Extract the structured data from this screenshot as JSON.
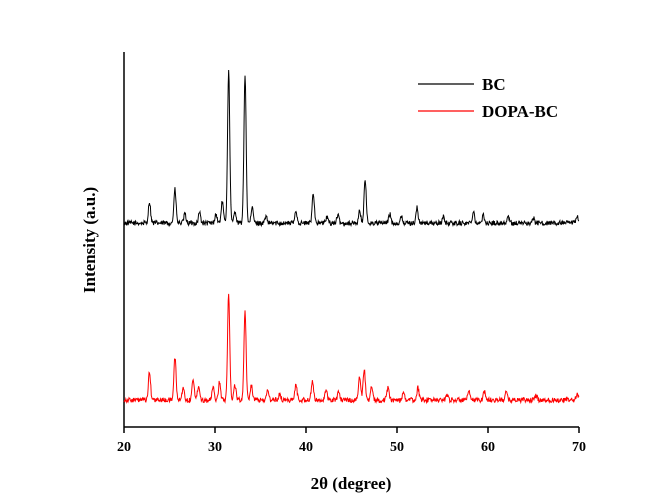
{
  "chart_data": {
    "type": "line",
    "title": "",
    "xlabel": "2θ (degree)",
    "ylabel": "Intensity (a.u.)",
    "xlim": [
      20,
      70
    ],
    "x_ticks": [
      "20",
      "30",
      "40",
      "50",
      "60",
      "70"
    ],
    "y_ticks_visible": false,
    "grid": false,
    "legend_position": "top-right",
    "series": [
      {
        "name": "BC",
        "color": "#000000",
        "baseline": 0.58,
        "noise": 0.008,
        "peaks": [
          {
            "x": 22.8,
            "h": 0.07
          },
          {
            "x": 25.6,
            "h": 0.11
          },
          {
            "x": 26.7,
            "h": 0.03
          },
          {
            "x": 28.3,
            "h": 0.035
          },
          {
            "x": 30.1,
            "h": 0.03
          },
          {
            "x": 30.8,
            "h": 0.07
          },
          {
            "x": 31.5,
            "h": 0.5
          },
          {
            "x": 32.2,
            "h": 0.04
          },
          {
            "x": 33.3,
            "h": 0.49
          },
          {
            "x": 34.1,
            "h": 0.05
          },
          {
            "x": 35.6,
            "h": 0.02
          },
          {
            "x": 38.9,
            "h": 0.04
          },
          {
            "x": 40.8,
            "h": 0.1
          },
          {
            "x": 42.3,
            "h": 0.02
          },
          {
            "x": 43.5,
            "h": 0.025
          },
          {
            "x": 45.9,
            "h": 0.04
          },
          {
            "x": 46.5,
            "h": 0.14
          },
          {
            "x": 49.2,
            "h": 0.03
          },
          {
            "x": 50.5,
            "h": 0.02
          },
          {
            "x": 52.2,
            "h": 0.05
          },
          {
            "x": 55.1,
            "h": 0.02
          },
          {
            "x": 58.4,
            "h": 0.04
          },
          {
            "x": 59.5,
            "h": 0.025
          },
          {
            "x": 62.2,
            "h": 0.02
          },
          {
            "x": 65.0,
            "h": 0.015
          },
          {
            "x": 69.8,
            "h": 0.02
          }
        ]
      },
      {
        "name": "DOPA-BC",
        "color": "#ff0000",
        "baseline": 0.0,
        "noise": 0.008,
        "peaks": [
          {
            "x": 22.8,
            "h": 0.09
          },
          {
            "x": 25.6,
            "h": 0.14
          },
          {
            "x": 26.5,
            "h": 0.04
          },
          {
            "x": 27.6,
            "h": 0.07
          },
          {
            "x": 28.2,
            "h": 0.05
          },
          {
            "x": 29.8,
            "h": 0.04
          },
          {
            "x": 30.5,
            "h": 0.06
          },
          {
            "x": 31.5,
            "h": 0.35
          },
          {
            "x": 32.2,
            "h": 0.05
          },
          {
            "x": 33.3,
            "h": 0.29
          },
          {
            "x": 34.0,
            "h": 0.05
          },
          {
            "x": 35.8,
            "h": 0.03
          },
          {
            "x": 37.1,
            "h": 0.02
          },
          {
            "x": 38.9,
            "h": 0.05
          },
          {
            "x": 40.7,
            "h": 0.06
          },
          {
            "x": 42.2,
            "h": 0.03
          },
          {
            "x": 43.6,
            "h": 0.03
          },
          {
            "x": 45.9,
            "h": 0.08
          },
          {
            "x": 46.4,
            "h": 0.1
          },
          {
            "x": 47.2,
            "h": 0.04
          },
          {
            "x": 49.0,
            "h": 0.04
          },
          {
            "x": 50.7,
            "h": 0.025
          },
          {
            "x": 52.3,
            "h": 0.04
          },
          {
            "x": 55.5,
            "h": 0.02
          },
          {
            "x": 57.9,
            "h": 0.025
          },
          {
            "x": 59.6,
            "h": 0.03
          },
          {
            "x": 62.0,
            "h": 0.025
          },
          {
            "x": 65.3,
            "h": 0.015
          },
          {
            "x": 69.8,
            "h": 0.02
          }
        ]
      }
    ]
  }
}
